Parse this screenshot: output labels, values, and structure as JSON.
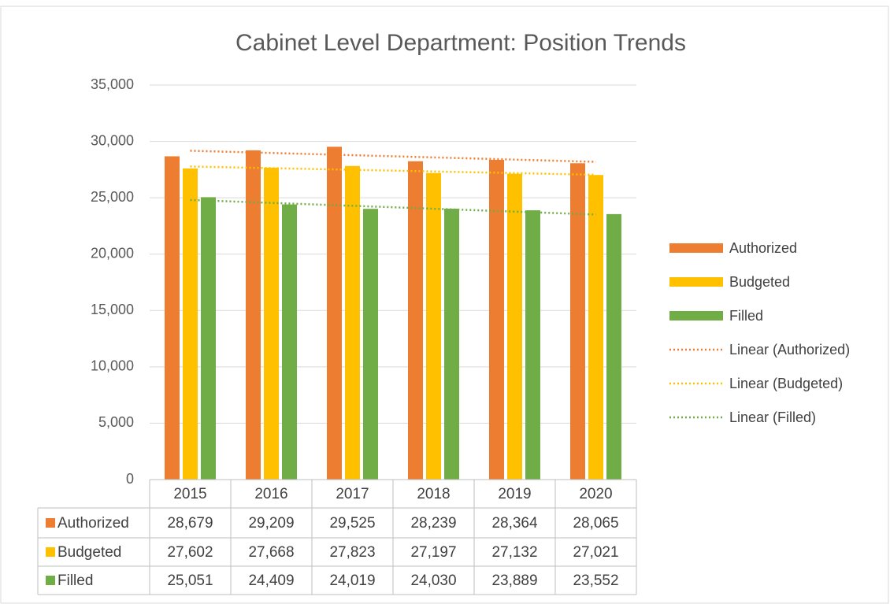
{
  "chart_data": {
    "type": "bar",
    "title": "Cabinet Level Department: Position Trends",
    "categories": [
      "2015",
      "2016",
      "2017",
      "2018",
      "2019",
      "2020"
    ],
    "series": [
      {
        "name": "Authorized",
        "color": "#ed7d31",
        "values": [
          28679,
          29209,
          29525,
          28239,
          28364,
          28065
        ],
        "value_labels": [
          "28,679",
          "29,209",
          "29,525",
          "28,239",
          "28,364",
          "28,065"
        ],
        "trendline": {
          "type": "linear",
          "name": "Linear (Authorized)"
        }
      },
      {
        "name": "Budgeted",
        "color": "#ffc000",
        "values": [
          27602,
          27668,
          27823,
          27197,
          27132,
          27021
        ],
        "value_labels": [
          "27,602",
          "27,668",
          "27,823",
          "27,197",
          "27,132",
          "27,021"
        ],
        "trendline": {
          "type": "linear",
          "name": "Linear (Budgeted)"
        }
      },
      {
        "name": "Filled",
        "color": "#70ad47",
        "values": [
          25051,
          24409,
          24019,
          24030,
          23889,
          23552
        ],
        "value_labels": [
          "25,051",
          "24,409",
          "24,019",
          "24,030",
          "23,889",
          "23,552"
        ],
        "trendline": {
          "type": "linear",
          "name": "Linear (Filled)"
        }
      }
    ],
    "ylim": [
      0,
      35000
    ],
    "yticks": [
      0,
      {
        "value": 5000,
        "label": "5,000"
      },
      {
        "value": 10000,
        "label": "10,000"
      },
      {
        "value": 15000,
        "label": "15,000"
      },
      {
        "value": 20000,
        "label": "20,000"
      },
      {
        "value": 25000,
        "label": "25,000"
      },
      {
        "value": 30000,
        "label": "30,000"
      },
      {
        "value": 35000,
        "label": "35,000"
      }
    ],
    "grid": true,
    "legend": "right",
    "data_table": true
  }
}
